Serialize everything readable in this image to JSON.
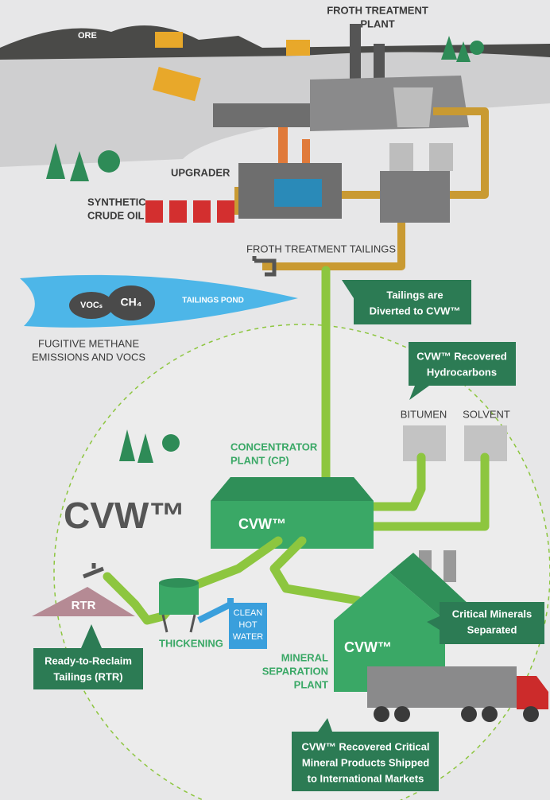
{
  "labels": {
    "ore": "ORE",
    "froth_plant": [
      "FROTH TREATMENT",
      "PLANT"
    ],
    "upgrader": "UPGRADER",
    "synthetic_crude": [
      "SYNTHETIC",
      "CRUDE OIL"
    ],
    "froth_tailings": "FROTH TREATMENT TAILINGS",
    "tailings_pond": "TAILINGS POND",
    "vocs": "VOCₛ",
    "ch4": "CH₄",
    "fugitive": [
      "FUGITIVE METHANE",
      "EMISSIONS AND VOCS"
    ],
    "concentrator": [
      "CONCENTRATOR",
      "PLANT (CP)"
    ],
    "bitumen": "BITUMEN",
    "solvent": "SOLVENT",
    "thickening": "THICKENING",
    "clean_water": [
      "CLEAN",
      "HOT",
      "WATER"
    ],
    "rtr": "RTR",
    "mineral_plant": [
      "MINERAL",
      "SEPARATION",
      "PLANT"
    ]
  },
  "logos": {
    "main": "CVW™",
    "cp": "CVW™",
    "mineral": "CVW™"
  },
  "callouts": {
    "diverted": [
      "Tailings are",
      "Diverted to CVW™"
    ],
    "hydrocarbons": [
      "CVW™ Recovered",
      "Hydrocarbons"
    ],
    "rtr": [
      "Ready-to-Reclaim",
      "Tailings (RTR)"
    ],
    "minerals": [
      "Critical Minerals",
      "Separated"
    ],
    "shipped": [
      "CVW™ Recovered Critical",
      "Mineral Products Shipped",
      "to International Markets"
    ]
  }
}
